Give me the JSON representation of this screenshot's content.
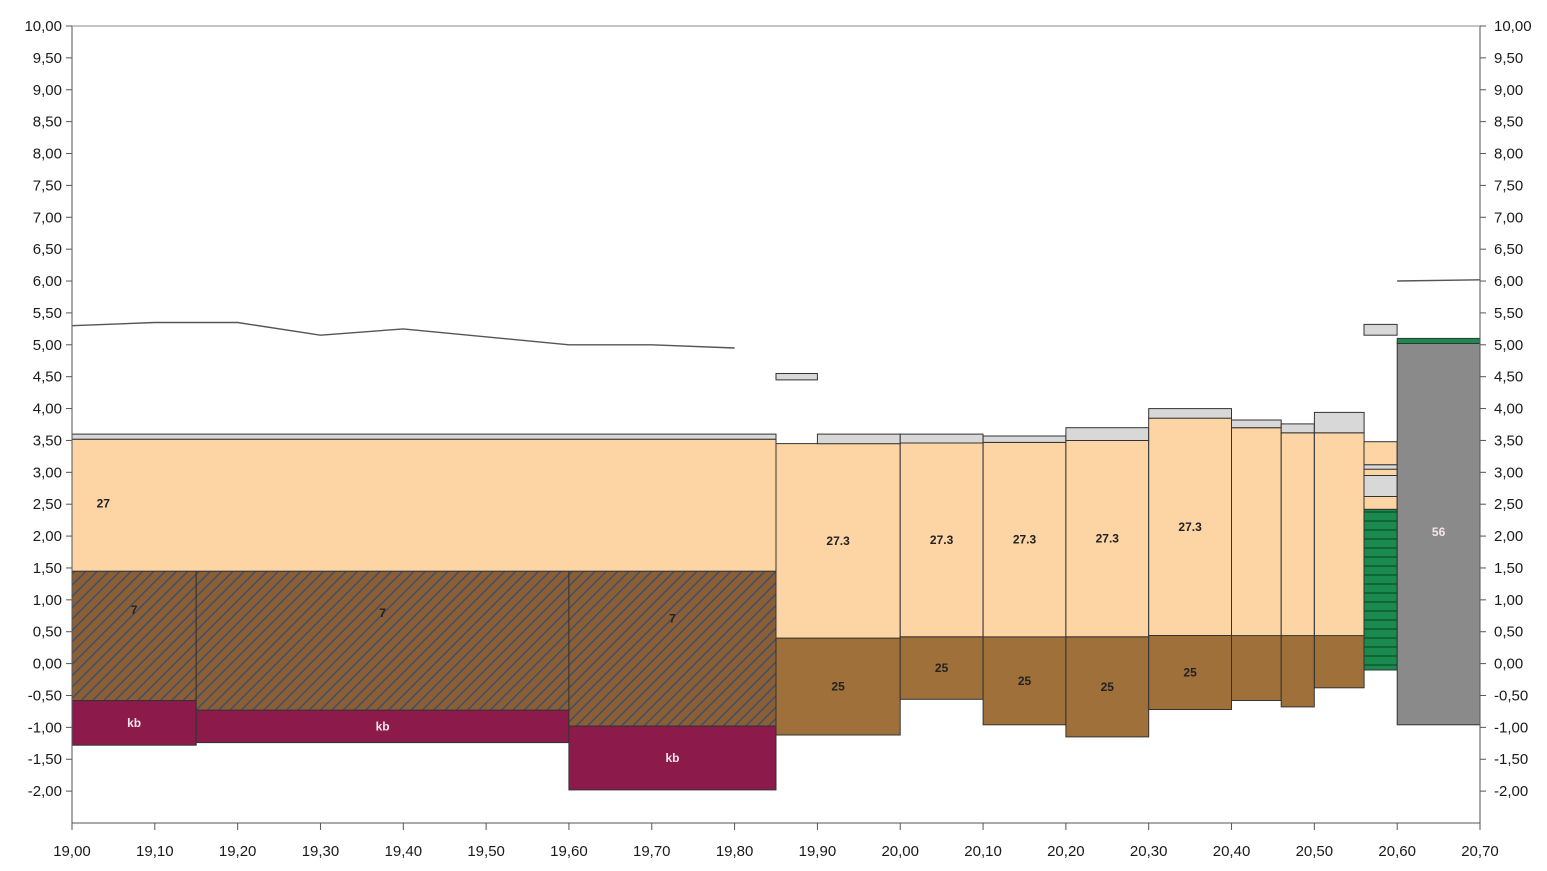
{
  "chart_data": {
    "type": "area",
    "title": "",
    "xlabel": "",
    "ylabel": "",
    "xlim": [
      19.0,
      20.7
    ],
    "ylim": [
      -2.5,
      10.0
    ],
    "x_ticks": [
      "19,00",
      "19,10",
      "19,20",
      "19,30",
      "19,40",
      "19,50",
      "19,60",
      "19,70",
      "19,80",
      "19,90",
      "20,00",
      "20,10",
      "20,20",
      "20,30",
      "20,40",
      "20,50",
      "20,60",
      "20,70"
    ],
    "y_ticks": [
      "10,00",
      "9,50",
      "9,00",
      "8,50",
      "8,00",
      "7,50",
      "7,00",
      "6,50",
      "6,00",
      "5,50",
      "5,00",
      "4,50",
      "4,00",
      "3,50",
      "3,00",
      "2,50",
      "2,00",
      "1,50",
      "1,00",
      "0,50",
      "0,00",
      "-0,50",
      "-1,00",
      "-1,50",
      "-2,00"
    ],
    "y_ticks_right": [
      "10,00",
      "9,50",
      "9,00",
      "8,50",
      "8,00",
      "7,50",
      "7,00",
      "6,50",
      "6,00",
      "5,50",
      "5,00",
      "4,50",
      "4,00",
      "3,50",
      "3,00",
      "2,50",
      "2,00",
      "1,50",
      "1,00",
      "0,50",
      "0,00",
      "-0,50",
      "-1,00",
      "-1,50",
      "-2,00"
    ],
    "y_tick_values": [
      10,
      9.5,
      9,
      8.5,
      8,
      7.5,
      7,
      6.5,
      6,
      5.5,
      5,
      4.5,
      4,
      3.5,
      3,
      2.5,
      2,
      1.5,
      1,
      0.5,
      0,
      -0.5,
      -1,
      -1.5,
      -2
    ],
    "x_tick_values": [
      19.0,
      19.1,
      19.2,
      19.3,
      19.4,
      19.5,
      19.6,
      19.7,
      19.8,
      19.9,
      20.0,
      20.1,
      20.2,
      20.3,
      20.4,
      20.5,
      20.6,
      20.7
    ],
    "grid": false,
    "colors": {
      "sand": "#fdd4a3",
      "clay": "#a0703a",
      "hatch_bg": "#8b5e34",
      "hatch_line": "#3d4f6e",
      "kb": "#8c1a4a",
      "grey_light": "#d8d8d8",
      "gravel": "#8a8a8a",
      "green": "#1a8a4e",
      "outline": "#333333",
      "line": "#555555"
    },
    "surface_line": {
      "x": [
        19.0,
        19.1,
        19.2,
        19.3,
        19.4,
        19.6,
        19.7,
        19.8
      ],
      "y": [
        5.3,
        5.35,
        5.35,
        5.15,
        5.25,
        5.0,
        5.0,
        4.95
      ]
    },
    "surface_line_right": {
      "x": [
        20.6,
        20.7
      ],
      "y": [
        6.0,
        6.02
      ]
    },
    "layers": [
      {
        "code": "kb",
        "fill": "kb",
        "x0": 19.0,
        "x1": 19.15,
        "y0": -1.28,
        "y1": -0.58,
        "label": "kb"
      },
      {
        "code": "kb",
        "fill": "kb",
        "x0": 19.15,
        "x1": 19.6,
        "y0": -1.24,
        "y1": -0.73,
        "label": "kb"
      },
      {
        "code": "kb",
        "fill": "kb",
        "x0": 19.6,
        "x1": 19.85,
        "y0": -1.98,
        "y1": -0.98,
        "label": "kb"
      },
      {
        "code": "7",
        "fill": "hatch",
        "x0": 19.0,
        "x1": 19.15,
        "y0": -0.58,
        "y1": 1.45,
        "label": "7"
      },
      {
        "code": "7",
        "fill": "hatch",
        "x0": 19.15,
        "x1": 19.6,
        "y0": -0.73,
        "y1": 1.45,
        "label": "7"
      },
      {
        "code": "7",
        "fill": "hatch",
        "x0": 19.6,
        "x1": 19.85,
        "y0": -0.98,
        "y1": 1.45,
        "label": "7"
      },
      {
        "code": "27",
        "fill": "sand",
        "x0": 19.0,
        "x1": 19.85,
        "y0": 1.45,
        "y1": 3.52,
        "label": "27"
      },
      {
        "code": "",
        "fill": "grey_light",
        "x0": 19.0,
        "x1": 19.85,
        "y0": 3.52,
        "y1": 3.6,
        "label": ""
      },
      {
        "code": "25",
        "fill": "clay",
        "x0": 19.85,
        "x1": 20.0,
        "y0": -1.12,
        "y1": 0.4,
        "label": "25"
      },
      {
        "code": "27.3",
        "fill": "sand",
        "x0": 19.85,
        "x1": 20.0,
        "y0": 0.4,
        "y1": 3.45,
        "label": "27.3"
      },
      {
        "code": "",
        "fill": "grey_light",
        "x0": 19.9,
        "x1": 20.0,
        "y0": 3.45,
        "y1": 3.6,
        "label": ""
      },
      {
        "code": "",
        "fill": "grey_light",
        "x0": 19.85,
        "x1": 19.9,
        "y0": 4.45,
        "y1": 4.55,
        "label": ""
      },
      {
        "code": "25",
        "fill": "clay",
        "x0": 20.0,
        "x1": 20.1,
        "y0": -0.56,
        "y1": 0.42,
        "label": "25"
      },
      {
        "code": "27.3",
        "fill": "sand",
        "x0": 20.0,
        "x1": 20.1,
        "y0": 0.42,
        "y1": 3.46,
        "label": "27.3"
      },
      {
        "code": "",
        "fill": "grey_light",
        "x0": 20.0,
        "x1": 20.1,
        "y0": 3.46,
        "y1": 3.6,
        "label": ""
      },
      {
        "code": "25",
        "fill": "clay",
        "x0": 20.1,
        "x1": 20.2,
        "y0": -0.96,
        "y1": 0.42,
        "label": "25"
      },
      {
        "code": "27.3",
        "fill": "sand",
        "x0": 20.1,
        "x1": 20.2,
        "y0": 0.42,
        "y1": 3.47,
        "label": "27.3"
      },
      {
        "code": "",
        "fill": "grey_light",
        "x0": 20.1,
        "x1": 20.2,
        "y0": 3.47,
        "y1": 3.57,
        "label": ""
      },
      {
        "code": "25",
        "fill": "clay",
        "x0": 20.2,
        "x1": 20.3,
        "y0": -1.15,
        "y1": 0.42,
        "label": "25"
      },
      {
        "code": "27.3",
        "fill": "sand",
        "x0": 20.2,
        "x1": 20.3,
        "y0": 0.42,
        "y1": 3.5,
        "label": "27.3"
      },
      {
        "code": "",
        "fill": "grey_light",
        "x0": 20.2,
        "x1": 20.3,
        "y0": 3.5,
        "y1": 3.7,
        "label": ""
      },
      {
        "code": "25",
        "fill": "clay",
        "x0": 20.3,
        "x1": 20.4,
        "y0": -0.72,
        "y1": 0.44,
        "label": "25"
      },
      {
        "code": "27.3",
        "fill": "sand",
        "x0": 20.3,
        "x1": 20.4,
        "y0": 0.44,
        "y1": 3.85,
        "label": "27.3"
      },
      {
        "code": "",
        "fill": "grey_light",
        "x0": 20.3,
        "x1": 20.4,
        "y0": 3.85,
        "y1": 4.0,
        "label": ""
      },
      {
        "code": "",
        "fill": "clay",
        "x0": 20.4,
        "x1": 20.46,
        "y0": -0.58,
        "y1": 0.44,
        "label": ""
      },
      {
        "code": "",
        "fill": "sand",
        "x0": 20.4,
        "x1": 20.46,
        "y0": 0.44,
        "y1": 3.7,
        "label": ""
      },
      {
        "code": "",
        "fill": "grey_light",
        "x0": 20.4,
        "x1": 20.46,
        "y0": 3.7,
        "y1": 3.82,
        "label": ""
      },
      {
        "code": "",
        "fill": "clay",
        "x0": 20.46,
        "x1": 20.5,
        "y0": -0.68,
        "y1": 0.44,
        "label": ""
      },
      {
        "code": "",
        "fill": "sand",
        "x0": 20.46,
        "x1": 20.5,
        "y0": 0.44,
        "y1": 3.62,
        "label": ""
      },
      {
        "code": "",
        "fill": "grey_light",
        "x0": 20.46,
        "x1": 20.5,
        "y0": 3.62,
        "y1": 3.76,
        "label": ""
      },
      {
        "code": "",
        "fill": "clay",
        "x0": 20.5,
        "x1": 20.56,
        "y0": -0.38,
        "y1": 0.44,
        "label": ""
      },
      {
        "code": "",
        "fill": "sand",
        "x0": 20.5,
        "x1": 20.56,
        "y0": 0.44,
        "y1": 3.62,
        "label": ""
      },
      {
        "code": "",
        "fill": "grey_light",
        "x0": 20.5,
        "x1": 20.56,
        "y0": 3.62,
        "y1": 3.94,
        "label": ""
      },
      {
        "code": "",
        "fill": "green_striped",
        "x0": 20.56,
        "x1": 20.6,
        "y0": -0.1,
        "y1": 2.42,
        "label": ""
      },
      {
        "code": "",
        "fill": "sand",
        "x0": 20.56,
        "x1": 20.6,
        "y0": 2.42,
        "y1": 2.62,
        "label": ""
      },
      {
        "code": "",
        "fill": "grey_light",
        "x0": 20.56,
        "x1": 20.6,
        "y0": 2.62,
        "y1": 2.95,
        "label": ""
      },
      {
        "code": "",
        "fill": "sand",
        "x0": 20.56,
        "x1": 20.6,
        "y0": 2.95,
        "y1": 3.05,
        "label": ""
      },
      {
        "code": "",
        "fill": "grey_light",
        "x0": 20.56,
        "x1": 20.6,
        "y0": 3.05,
        "y1": 3.12,
        "label": ""
      },
      {
        "code": "",
        "fill": "sand",
        "x0": 20.56,
        "x1": 20.6,
        "y0": 3.12,
        "y1": 3.48,
        "label": ""
      },
      {
        "code": "",
        "fill": "grey_light",
        "x0": 20.56,
        "x1": 20.6,
        "y0": 5.15,
        "y1": 5.32,
        "label": ""
      },
      {
        "code": "56",
        "fill": "gravel",
        "x0": 20.6,
        "x1": 20.7,
        "y0": -0.96,
        "y1": 5.02,
        "label": "56"
      },
      {
        "code": "",
        "fill": "green",
        "x0": 20.6,
        "x1": 20.7,
        "y0": 5.02,
        "y1": 5.1,
        "label": ""
      }
    ]
  }
}
